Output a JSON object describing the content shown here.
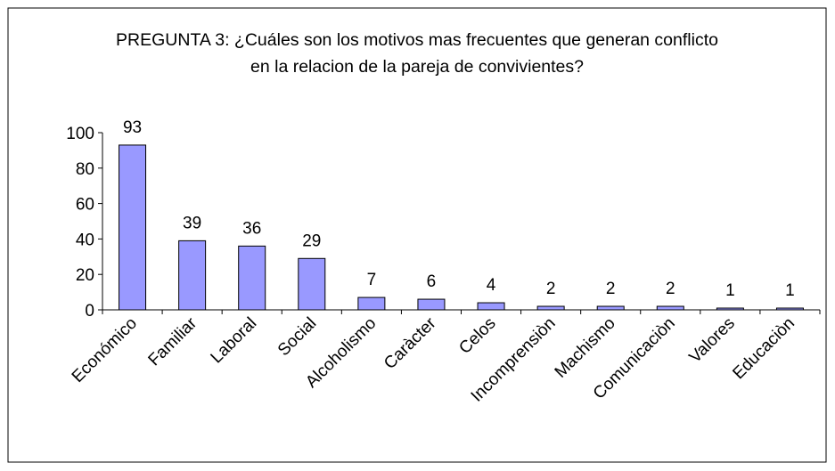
{
  "chart_data": {
    "type": "bar",
    "title": "PREGUNTA 3: ¿Cuáles son los motivos mas frecuentes que generan conflicto en la relacion de la pareja de convivientes?",
    "categories": [
      "Económico",
      "Familiar",
      "Laboral",
      "Social",
      "Alcoholismo",
      "Caràcter",
      "Celos",
      "Incomprensiòn",
      "Machismo",
      "Comunicaciòn",
      "Valores",
      "Educaciòn"
    ],
    "values": [
      93,
      39,
      36,
      29,
      7,
      6,
      4,
      2,
      2,
      2,
      1,
      1
    ],
    "color": "#9999ff",
    "ylim": [
      0,
      100
    ],
    "yticks": [
      0,
      20,
      40,
      60,
      80,
      100
    ],
    "grid": false
  }
}
